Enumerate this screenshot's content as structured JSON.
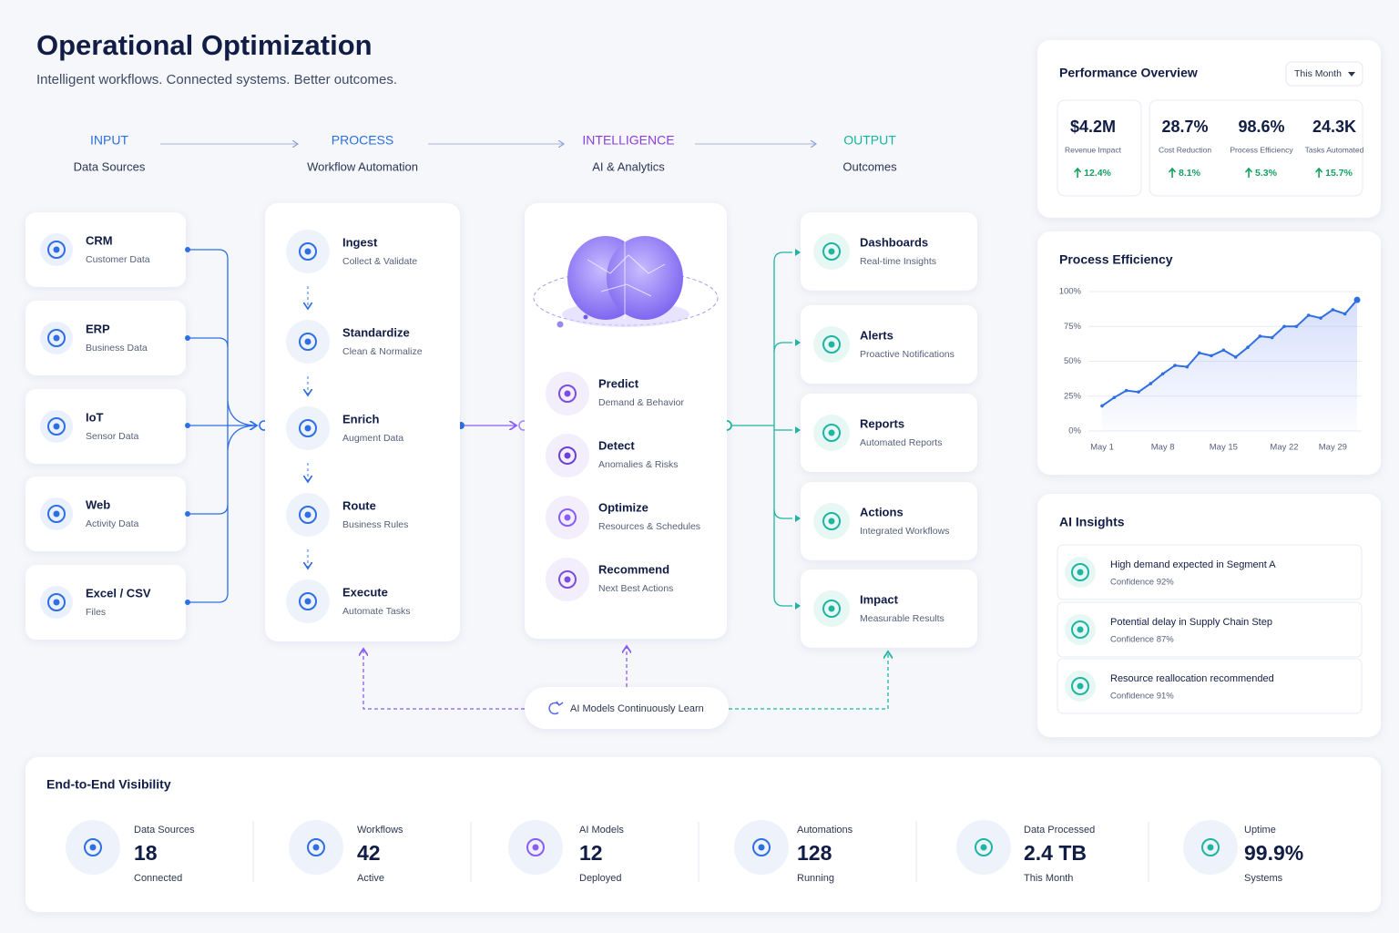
{
  "header": {
    "title": "Operational Optimization",
    "subtitle": "Intelligent workflows. Connected systems. Better outcomes."
  },
  "stages": [
    {
      "title": "INPUT",
      "subtitle": "Data Sources"
    },
    {
      "title": "PROCESS",
      "subtitle": "Workflow Automation"
    },
    {
      "title": "INTELLIGENCE",
      "subtitle": "AI & Analytics"
    },
    {
      "title": "OUTPUT",
      "subtitle": "Outcomes"
    }
  ],
  "inputs": [
    {
      "label": "CRM",
      "sub": "Customer Data"
    },
    {
      "label": "ERP",
      "sub": "Business Data"
    },
    {
      "label": "IoT",
      "sub": "Sensor Data"
    },
    {
      "label": "Web",
      "sub": "Activity Data"
    },
    {
      "label": "Excel / CSV",
      "sub": "Files"
    }
  ],
  "process_steps": [
    {
      "label": "Ingest",
      "sub": "Collect & Validate"
    },
    {
      "label": "Standardize",
      "sub": "Clean & Normalize"
    },
    {
      "label": "Enrich",
      "sub": "Augment Data"
    },
    {
      "label": "Route",
      "sub": "Business Rules"
    },
    {
      "label": "Execute",
      "sub": "Automate Tasks"
    }
  ],
  "intelligence": [
    {
      "label": "Predict",
      "sub": "Demand & Behavior"
    },
    {
      "label": "Detect",
      "sub": "Anomalies & Risks"
    },
    {
      "label": "Optimize",
      "sub": "Resources & Schedules"
    },
    {
      "label": "Recommend",
      "sub": "Next Best Actions"
    }
  ],
  "outputs": [
    {
      "label": "Dashboards",
      "sub": "Real-time Insights"
    },
    {
      "label": "Alerts",
      "sub": "Proactive Notifications"
    },
    {
      "label": "Reports",
      "sub": "Automated Reports"
    },
    {
      "label": "Actions",
      "sub": "Integrated Workflows"
    },
    {
      "label": "Impact",
      "sub": "Measurable Results"
    }
  ],
  "feedback_label": "AI Models Continuously Learn",
  "performance": {
    "title": "Performance Overview",
    "period": "This Month",
    "kpis": [
      {
        "value": "$4.2M",
        "label": "Revenue Impact",
        "change": "12.4%"
      },
      {
        "value": "28.7%",
        "label": "Cost Reduction",
        "change": "8.1%"
      },
      {
        "value": "98.6%",
        "label": "Process Efficiency",
        "change": "5.3%"
      },
      {
        "value": "24.3K",
        "label": "Tasks Automated",
        "change": "15.7%"
      }
    ]
  },
  "chart_data": {
    "type": "line",
    "title": "Process Efficiency",
    "categories": [
      "May 1",
      null,
      null,
      null,
      null,
      "May 8",
      null,
      null,
      null,
      null,
      "May 15",
      null,
      null,
      null,
      null,
      "May 22",
      null,
      null,
      null,
      "May 29",
      null,
      null
    ],
    "values": [
      18,
      24,
      29,
      28,
      34,
      41,
      47,
      46,
      56,
      54,
      58,
      53,
      60,
      68,
      67,
      75,
      75,
      83,
      81,
      87,
      84,
      94
    ],
    "color": "#2f6fe4",
    "ylim": [
      0,
      100
    ],
    "yticks": [
      {
        "value": 0,
        "label": "0%"
      },
      {
        "value": 25,
        "label": "25%"
      },
      {
        "value": 50,
        "label": "50%"
      },
      {
        "value": 75,
        "label": "75%"
      },
      {
        "value": 100,
        "label": "100%"
      }
    ],
    "grid": true
  },
  "insights": {
    "title": "AI Insights",
    "items": [
      {
        "text": "High demand expected in Segment A",
        "confidence": "Confidence 92%"
      },
      {
        "text": "Potential delay in Supply Chain Step",
        "confidence": "Confidence 87%"
      },
      {
        "text": "Resource reallocation recommended",
        "confidence": "Confidence 91%"
      }
    ]
  },
  "visibility": {
    "title": "End-to-End Visibility",
    "items": [
      {
        "label": "Data Sources",
        "value": "18",
        "sub": "Connected"
      },
      {
        "label": "Workflows",
        "value": "42",
        "sub": "Active"
      },
      {
        "label": "AI Models",
        "value": "12",
        "sub": "Deployed"
      },
      {
        "label": "Automations",
        "value": "128",
        "sub": "Running"
      },
      {
        "label": "Data Processed",
        "value": "2.4 TB",
        "sub": "This Month"
      },
      {
        "label": "Uptime",
        "value": "99.9%",
        "sub": "Systems"
      }
    ]
  }
}
